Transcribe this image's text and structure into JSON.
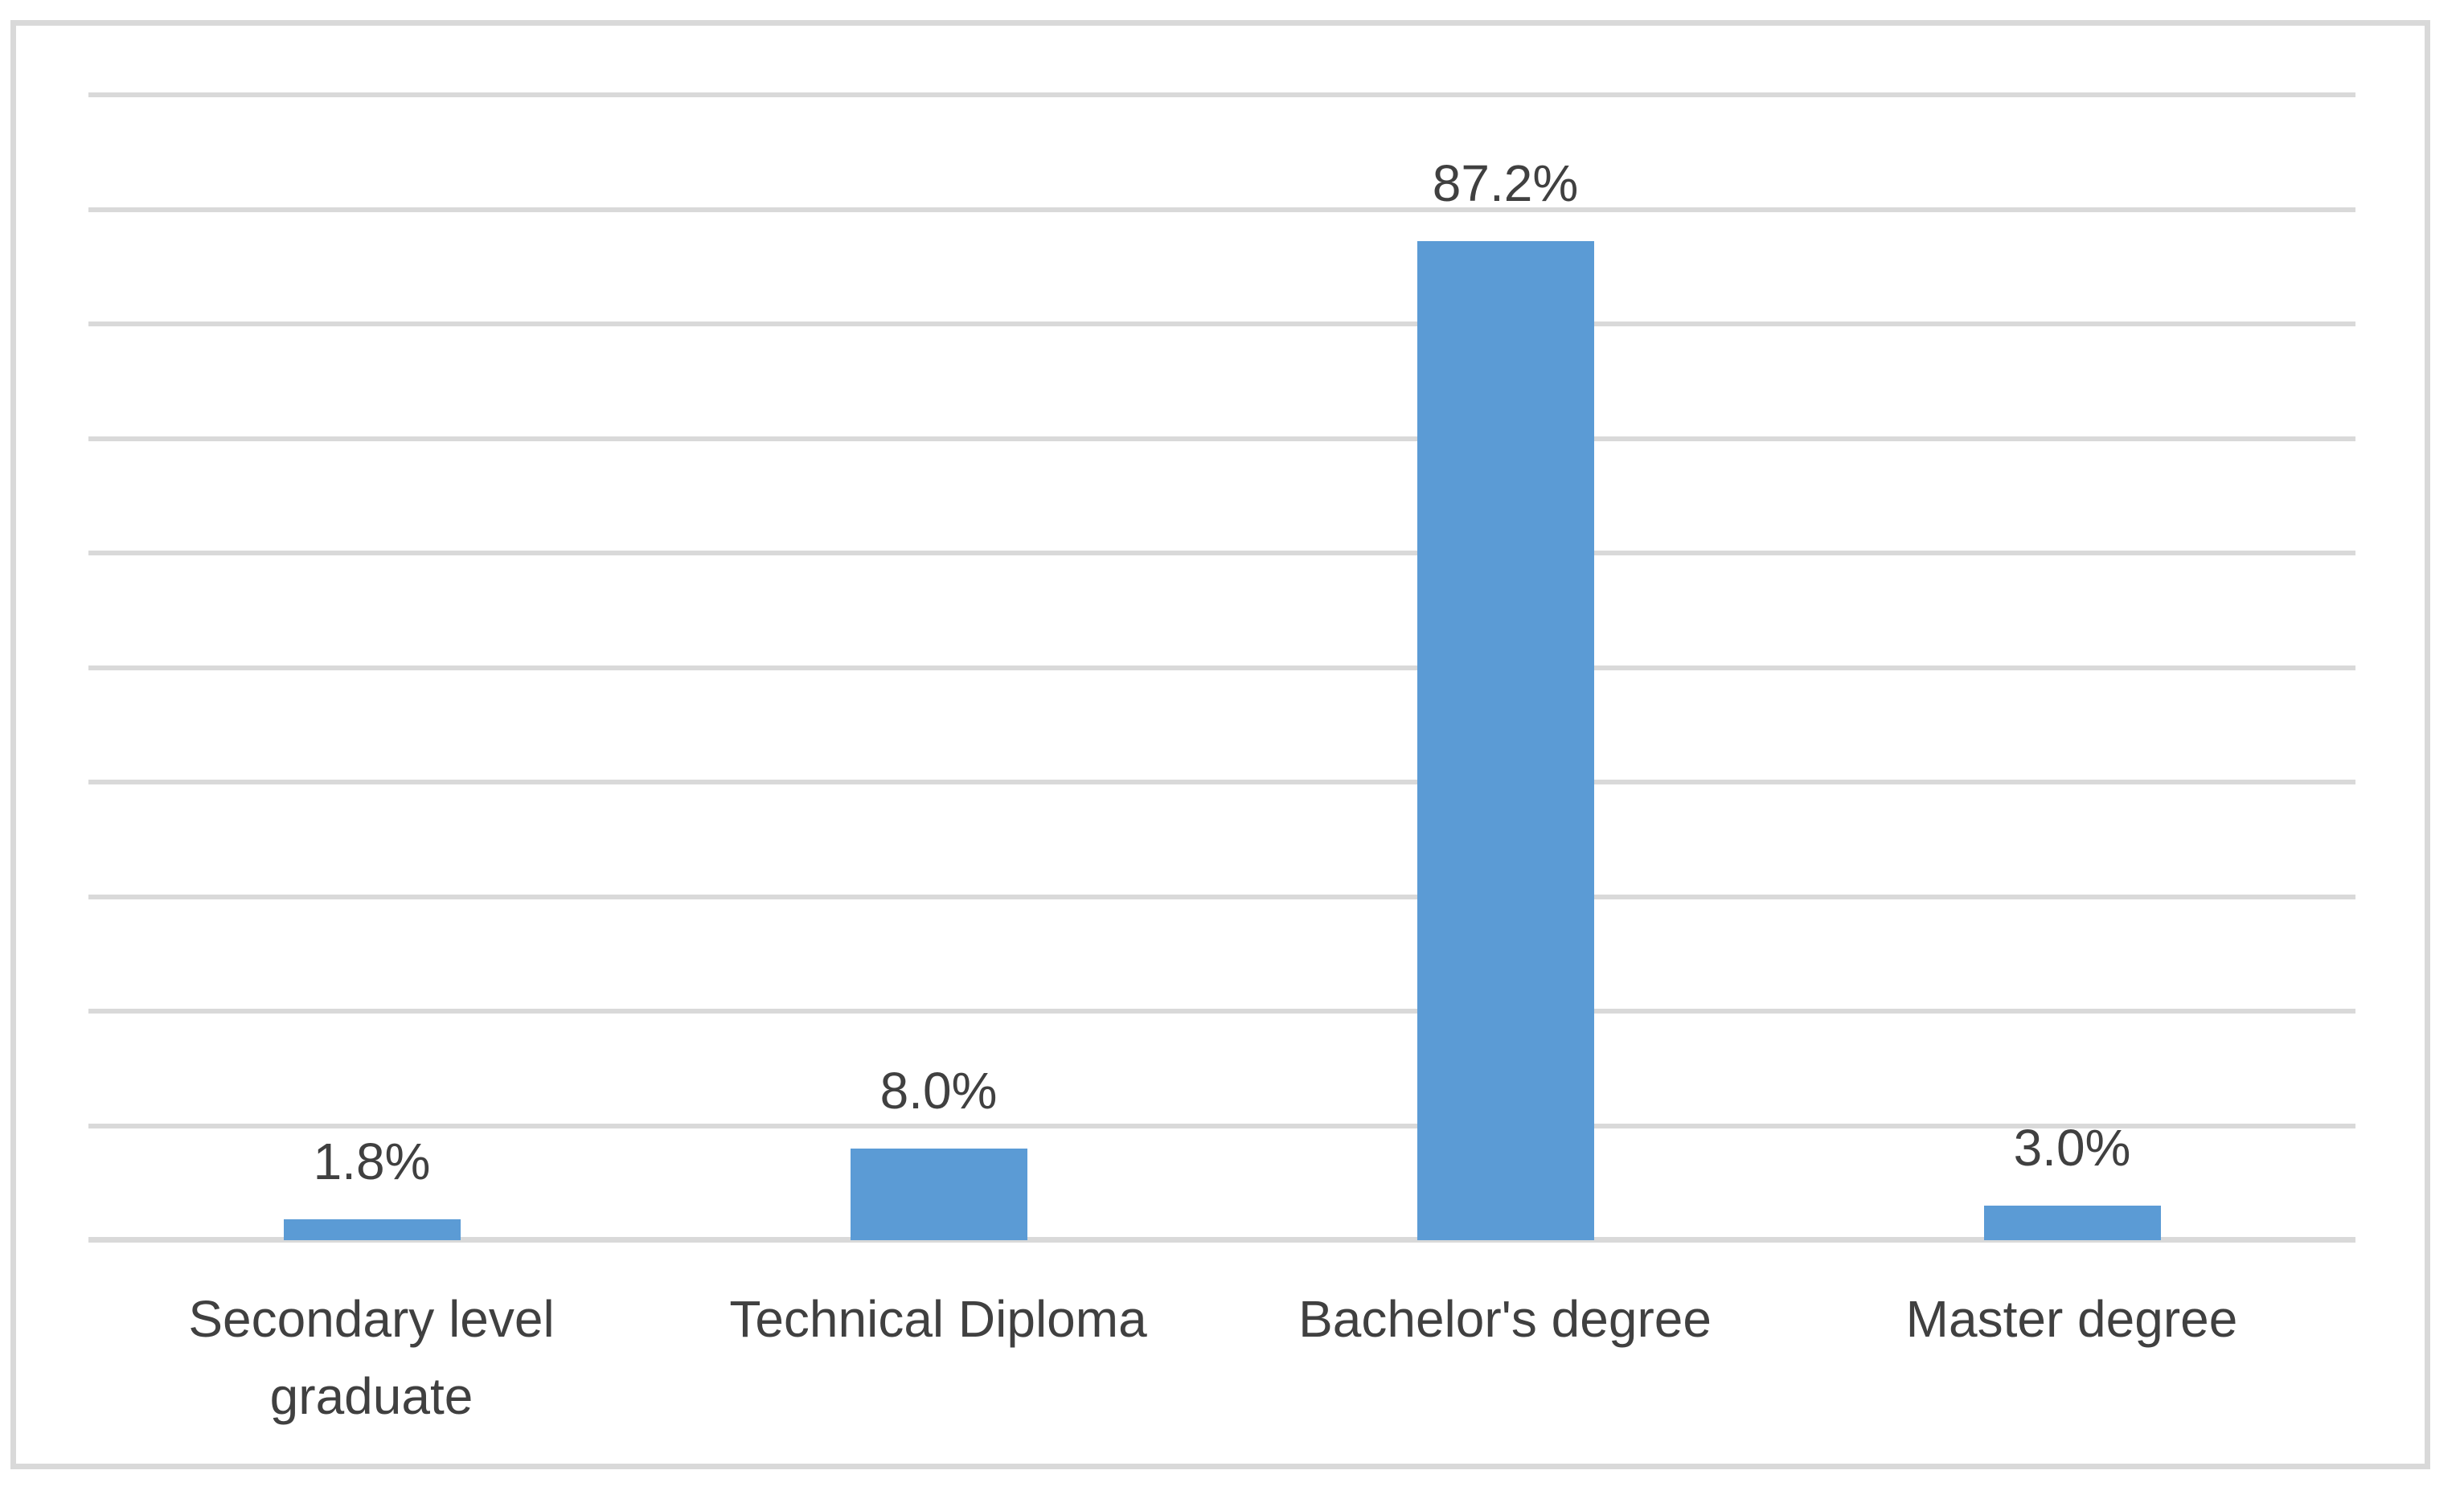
{
  "chart_data": {
    "type": "bar",
    "title": "",
    "xlabel": "",
    "ylabel": "",
    "categories": [
      "Secondary level graduate",
      "Technical Diploma",
      "Bachelor's degree",
      "Master degree"
    ],
    "values": [
      1.8,
      8.0,
      87.2,
      3.0
    ],
    "value_labels": [
      "1.8%",
      "8.0%",
      "87.2%",
      "3.0%"
    ],
    "ylim": [
      0,
      100
    ],
    "gridline_step": 10,
    "grid": "horizontal",
    "y_tick_labels_visible": false,
    "legend_position": "none",
    "colors": {
      "bar": "#5b9bd5",
      "gridline": "#d9d9d9",
      "axis_line": "#d9d9d9",
      "chart_border": "#d9d9d9",
      "text": "#404040",
      "background": "#ffffff"
    }
  }
}
